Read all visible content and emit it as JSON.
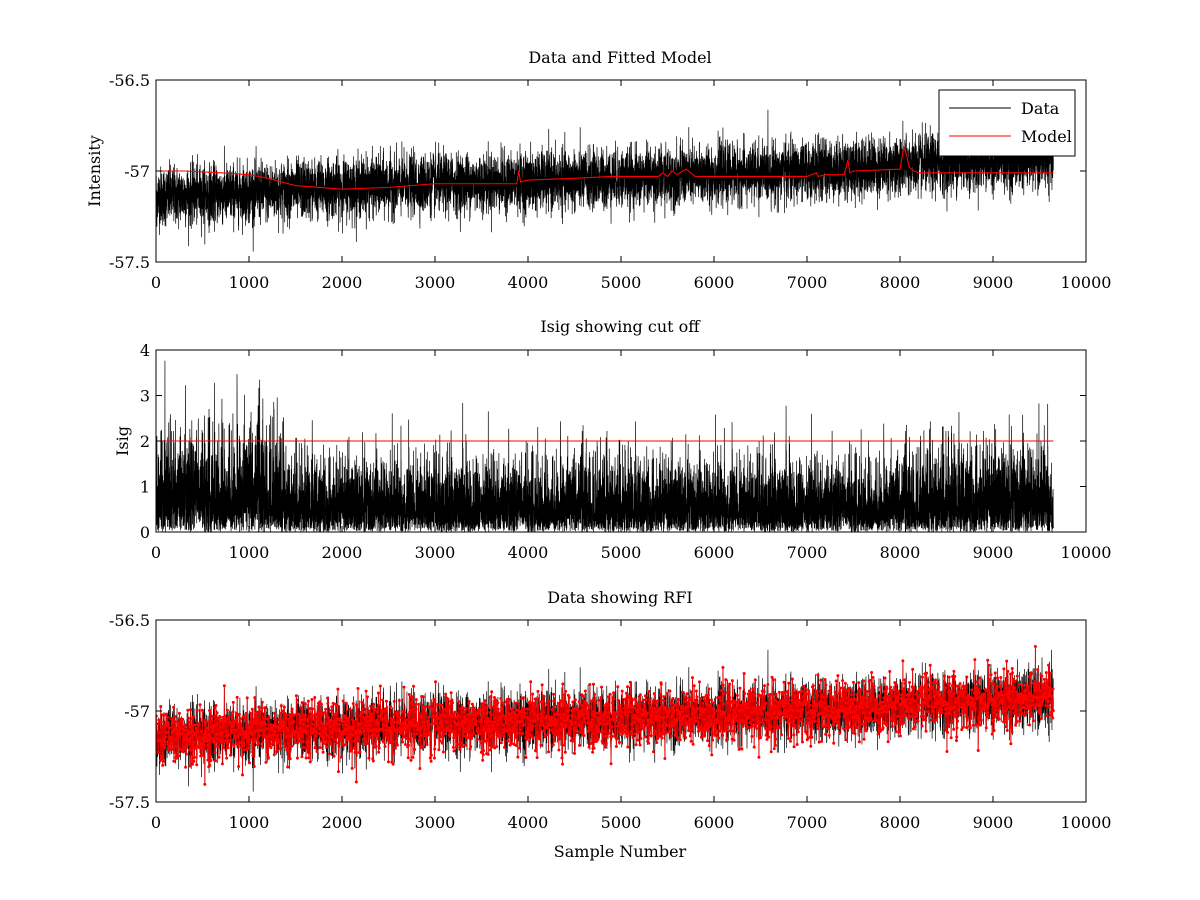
{
  "chart_data": [
    {
      "type": "line",
      "title": "Data and Fitted Model",
      "xlabel": "",
      "ylabel": "Intensity",
      "xlim": [
        0,
        10000
      ],
      "ylim": [
        -57.5,
        -56.5
      ],
      "xticks": [
        0,
        1000,
        2000,
        3000,
        4000,
        5000,
        6000,
        7000,
        8000,
        9000,
        10000
      ],
      "xtick_labels": [
        "0",
        "1000",
        "2000",
        "3000",
        "4000",
        "5000",
        "6000",
        "7000",
        "8000",
        "9000",
        "10000"
      ],
      "yticks": [
        -56.5,
        -57,
        -57.5
      ],
      "ytick_labels": [
        "-56.5",
        "-57",
        "-57.5"
      ],
      "legend": {
        "position": "top-right",
        "entries": [
          {
            "label": "Data",
            "color": "#000000"
          },
          {
            "label": "Model",
            "color": "#ff0000"
          }
        ]
      },
      "series": [
        {
          "name": "Data",
          "color": "#000000",
          "kind": "noise",
          "n": 9650,
          "trend_x": [
            0,
            1000,
            2000,
            3000,
            4000,
            5000,
            6000,
            7000,
            8000,
            9000,
            9650
          ],
          "trend_y": [
            -57.14,
            -57.12,
            -57.09,
            -57.07,
            -57.06,
            -57.04,
            -57.02,
            -57.0,
            -56.97,
            -56.94,
            -56.93
          ],
          "amplitude": 0.13
        },
        {
          "name": "Model",
          "color": "#ff0000",
          "x": [
            0,
            300,
            700,
            1000,
            1200,
            1500,
            2000,
            2500,
            3000,
            3500,
            3880,
            3900,
            3920,
            4000,
            4500,
            4900,
            5000,
            5400,
            5450,
            5500,
            5550,
            5600,
            5700,
            5800,
            6000,
            6500,
            7000,
            7100,
            7120,
            7200,
            7400,
            7440,
            7460,
            7500,
            8000,
            8040,
            8070,
            8100,
            8150,
            8200,
            8500,
            9000,
            9650
          ],
          "y": [
            -57.0,
            -57.0,
            -57.01,
            -57.02,
            -57.04,
            -57.08,
            -57.1,
            -57.09,
            -57.07,
            -57.07,
            -57.07,
            -57.0,
            -57.06,
            -57.05,
            -57.04,
            -57.03,
            -57.03,
            -57.03,
            -57.01,
            -57.03,
            -57.0,
            -57.02,
            -56.99,
            -57.03,
            -57.03,
            -57.03,
            -57.03,
            -57.01,
            -57.03,
            -57.02,
            -57.02,
            -56.94,
            -57.01,
            -57.0,
            -56.99,
            -56.87,
            -56.91,
            -56.98,
            -57.0,
            -57.01,
            -57.01,
            -57.01,
            -57.01
          ]
        }
      ]
    },
    {
      "type": "line",
      "title": "Isig showing cut off",
      "xlabel": "",
      "ylabel": "Isig",
      "xlim": [
        0,
        10000
      ],
      "ylim": [
        0,
        4
      ],
      "xticks": [
        0,
        1000,
        2000,
        3000,
        4000,
        5000,
        6000,
        7000,
        8000,
        9000,
        10000
      ],
      "xtick_labels": [
        "0",
        "1000",
        "2000",
        "3000",
        "4000",
        "5000",
        "6000",
        "7000",
        "8000",
        "9000",
        "10000"
      ],
      "yticks": [
        0,
        1,
        2,
        3,
        4
      ],
      "ytick_labels": [
        "0",
        "1",
        "2",
        "3",
        "4"
      ],
      "series": [
        {
          "name": "Isig",
          "color": "#000000",
          "kind": "abs-noise",
          "n": 9650,
          "scale_x": [
            0,
            1300,
            1400,
            8000,
            8500,
            9650
          ],
          "scale_y": [
            1.05,
            1.05,
            0.75,
            0.72,
            0.85,
            0.9
          ]
        },
        {
          "name": "Cut off",
          "color": "#ff0000",
          "x": [
            0,
            9650
          ],
          "y": [
            2,
            2
          ]
        }
      ]
    },
    {
      "type": "scatter",
      "title": "Data showing RFI",
      "xlabel": "Sample Number",
      "ylabel": "",
      "xlim": [
        0,
        10000
      ],
      "ylim": [
        -57.5,
        -56.5
      ],
      "xticks": [
        0,
        1000,
        2000,
        3000,
        4000,
        5000,
        6000,
        7000,
        8000,
        9000,
        10000
      ],
      "xtick_labels": [
        "0",
        "1000",
        "2000",
        "3000",
        "4000",
        "5000",
        "6000",
        "7000",
        "8000",
        "9000",
        "10000"
      ],
      "yticks": [
        -56.5,
        -57,
        -57.5
      ],
      "ytick_labels": [
        "-56.5",
        "-57",
        "-57.5"
      ],
      "series": [
        {
          "name": "Data",
          "color": "#000000",
          "kind": "noise",
          "n": 9650,
          "trend_x": [
            0,
            1000,
            2000,
            3000,
            4000,
            5000,
            6000,
            7000,
            8000,
            9000,
            9650
          ],
          "trend_y": [
            -57.14,
            -57.12,
            -57.09,
            -57.07,
            -57.06,
            -57.04,
            -57.02,
            -57.0,
            -56.97,
            -56.94,
            -56.93
          ],
          "amplitude": 0.13
        },
        {
          "name": "RFI points",
          "color": "#ff0000",
          "marker": "dot",
          "kind": "flagged",
          "n": 1400
        }
      ]
    }
  ]
}
